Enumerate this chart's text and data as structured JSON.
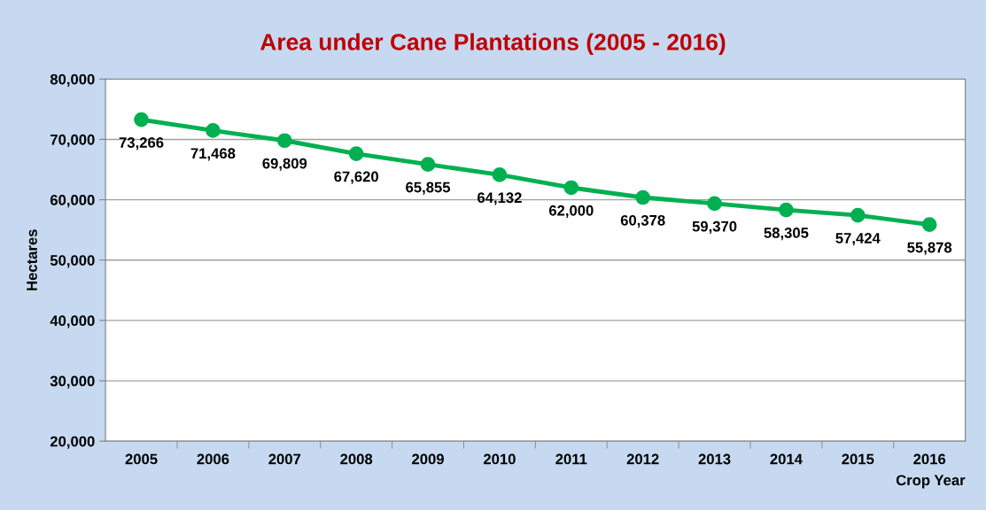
{
  "chart_data": {
    "type": "line",
    "title": "Area under Cane Plantations (2005 - 2016)",
    "xlabel": "Crop Year",
    "ylabel": "Hectares",
    "categories": [
      "2005",
      "2006",
      "2007",
      "2008",
      "2009",
      "2010",
      "2011",
      "2012",
      "2013",
      "2014",
      "2015",
      "2016"
    ],
    "series": [
      {
        "color": "#00b050",
        "values": [
          73266,
          71468,
          69809,
          67620,
          65855,
          64132,
          62000,
          60378,
          59370,
          58305,
          57424,
          55878
        ],
        "value_labels": [
          "73,266",
          "71,468",
          "69,809",
          "67,620",
          "65,855",
          "64,132",
          "62,000",
          "60,378",
          "59,370",
          "58,305",
          "57,424",
          "55,878"
        ]
      }
    ],
    "ylim": [
      20000,
      80000
    ],
    "yticks": [
      {
        "value": 20000,
        "label": "20,000"
      },
      {
        "value": 30000,
        "label": "30,000"
      },
      {
        "value": 40000,
        "label": "40,000"
      },
      {
        "value": 50000,
        "label": "50,000"
      },
      {
        "value": 60000,
        "label": "60,000"
      },
      {
        "value": 70000,
        "label": "70,000"
      },
      {
        "value": 80000,
        "label": "80,000"
      }
    ],
    "grid": "y",
    "marker": "circle",
    "line_style": "solid",
    "legend": false
  }
}
